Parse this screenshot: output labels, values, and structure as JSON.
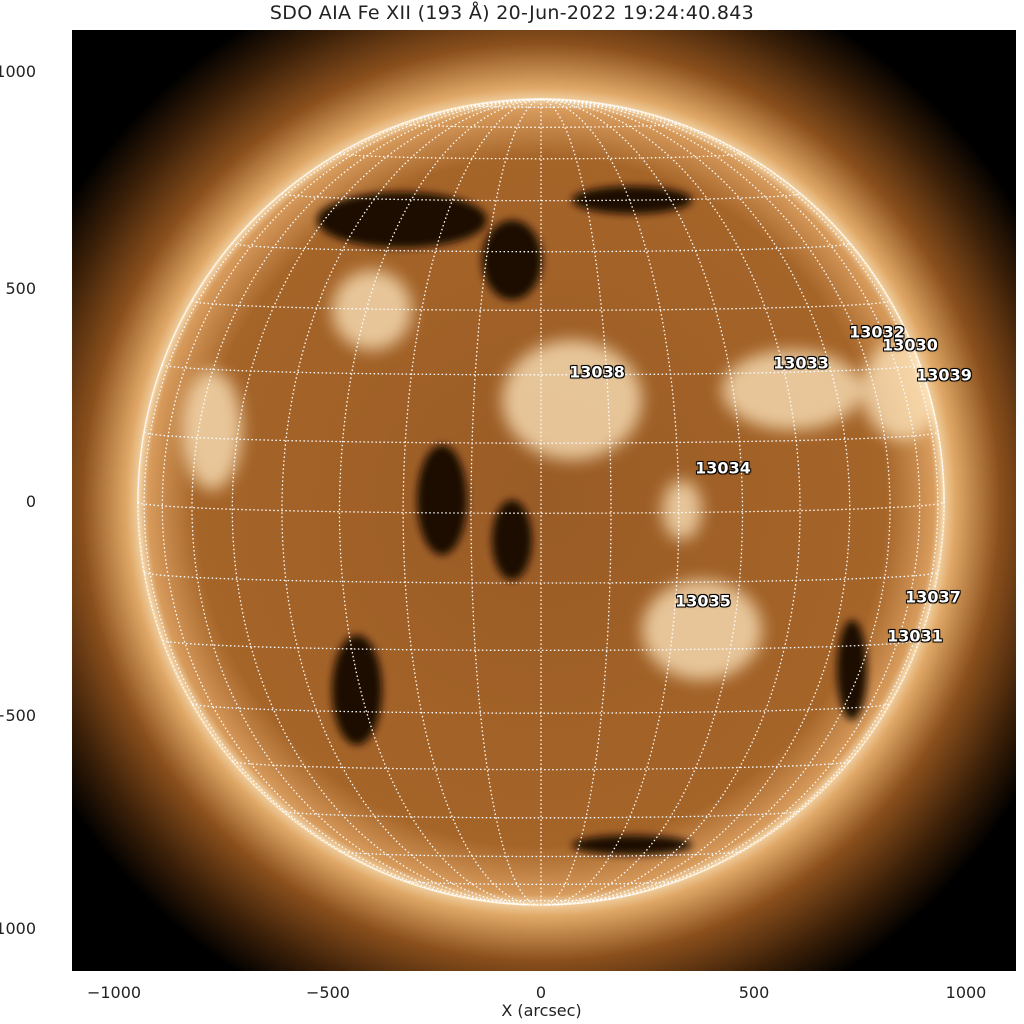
{
  "title": "SDO AIA Fe XII (193 Å) 20-Jun-2022 19:24:40.843",
  "x_axis": {
    "label": "X (arcsec)",
    "ticks": [
      "−1000",
      "−500",
      "0",
      "500",
      "1000"
    ]
  },
  "y_axis": {
    "ticks": [
      "1000",
      "500",
      "0",
      "−500",
      "−1000"
    ]
  },
  "colormap": {
    "dark": "#000000",
    "mid": "#a8642a",
    "bright": "#fff4dc"
  },
  "grid": {
    "spacing_deg": 10,
    "style": "dotted",
    "color": "#ffffff"
  },
  "active_regions": [
    "13038",
    "13033",
    "13032",
    "13030",
    "13039",
    "13034",
    "13035",
    "13037",
    "13031"
  ]
}
